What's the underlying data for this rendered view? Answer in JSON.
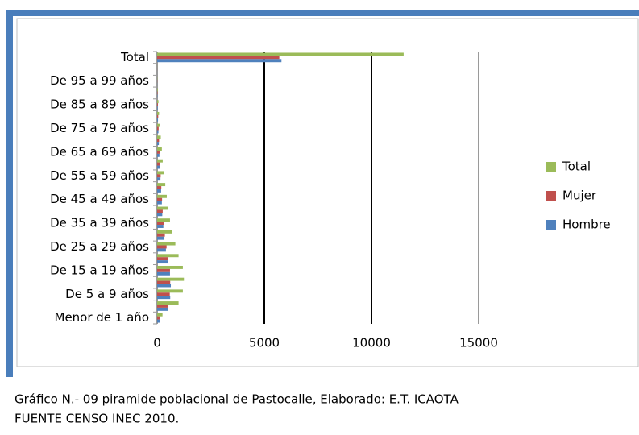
{
  "chart_data": {
    "type": "bar",
    "orientation": "horizontal",
    "categories": [
      "Menor de 1 año",
      null,
      "De 5 a 9 años",
      null,
      "De 15 a 19 años",
      null,
      "De 25 a 29 años",
      null,
      "De 35 a 39 años",
      null,
      "De 45 a 49 años",
      null,
      "De 55 a 59 años",
      null,
      "De 65 a 69 años",
      null,
      "De 75 a 79 años",
      null,
      "De 85 a 89 años",
      null,
      "De 95 a 99 años",
      null,
      "Total"
    ],
    "series": [
      {
        "name": "Total",
        "color": "#9bbb59",
        "values": [
          250,
          1000,
          1200,
          1250,
          1200,
          1000,
          850,
          700,
          600,
          500,
          450,
          380,
          320,
          260,
          220,
          170,
          130,
          90,
          60,
          30,
          10,
          3,
          11500
        ]
      },
      {
        "name": "Mujer",
        "color": "#c0504d",
        "values": [
          120,
          490,
          590,
          610,
          600,
          510,
          440,
          360,
          310,
          260,
          230,
          195,
          165,
          135,
          115,
          90,
          70,
          50,
          35,
          17,
          6,
          2,
          5700
        ]
      },
      {
        "name": "Hombre",
        "color": "#4f81bd",
        "values": [
          130,
          510,
          610,
          640,
          600,
          490,
          410,
          340,
          290,
          240,
          220,
          185,
          155,
          125,
          105,
          80,
          60,
          40,
          25,
          13,
          4,
          1,
          5800
        ]
      }
    ],
    "xlim": [
      0,
      15000
    ],
    "xticks": [
      0,
      5000,
      10000,
      15000
    ],
    "grid": true,
    "legend": "right"
  },
  "caption": [
    "Gráfico N.- 09 piramide poblacional de Pastocalle, Elaborado:  E.T. ICAOTA",
    "FUENTE CENSO INEC 2010."
  ]
}
